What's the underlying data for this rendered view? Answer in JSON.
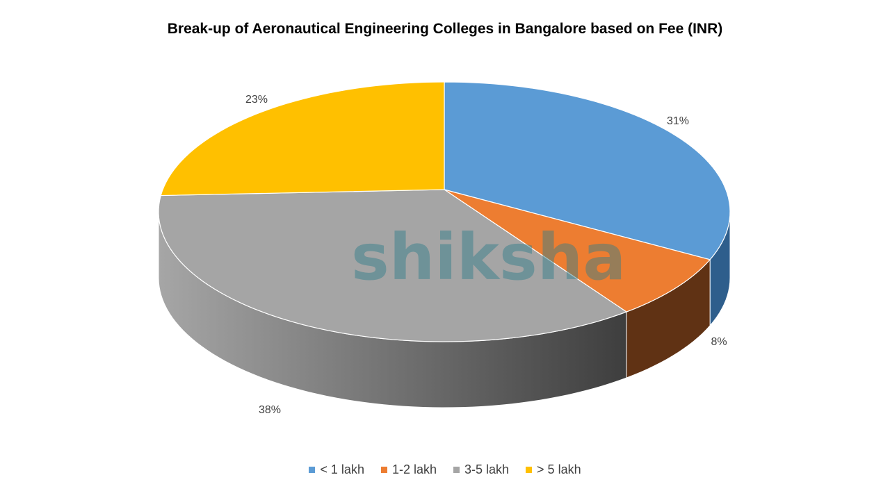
{
  "chart_data": {
    "type": "pie",
    "style": "3d",
    "title": "Break-up of Aeronautical Engineering Colleges in Bangalore based on Fee (INR)",
    "categories": [
      "< 1 lakh",
      "1-2 lakh",
      "3-5 lakh",
      "> 5 lakh"
    ],
    "values": [
      31,
      8,
      38,
      23
    ],
    "data_labels": [
      "31%",
      "8%",
      "38%",
      "23%"
    ],
    "colors": [
      "#5B9BD5",
      "#ED7D31",
      "#A5A5A5",
      "#FFC000"
    ],
    "legend_position": "bottom"
  },
  "watermark": "shiksha"
}
